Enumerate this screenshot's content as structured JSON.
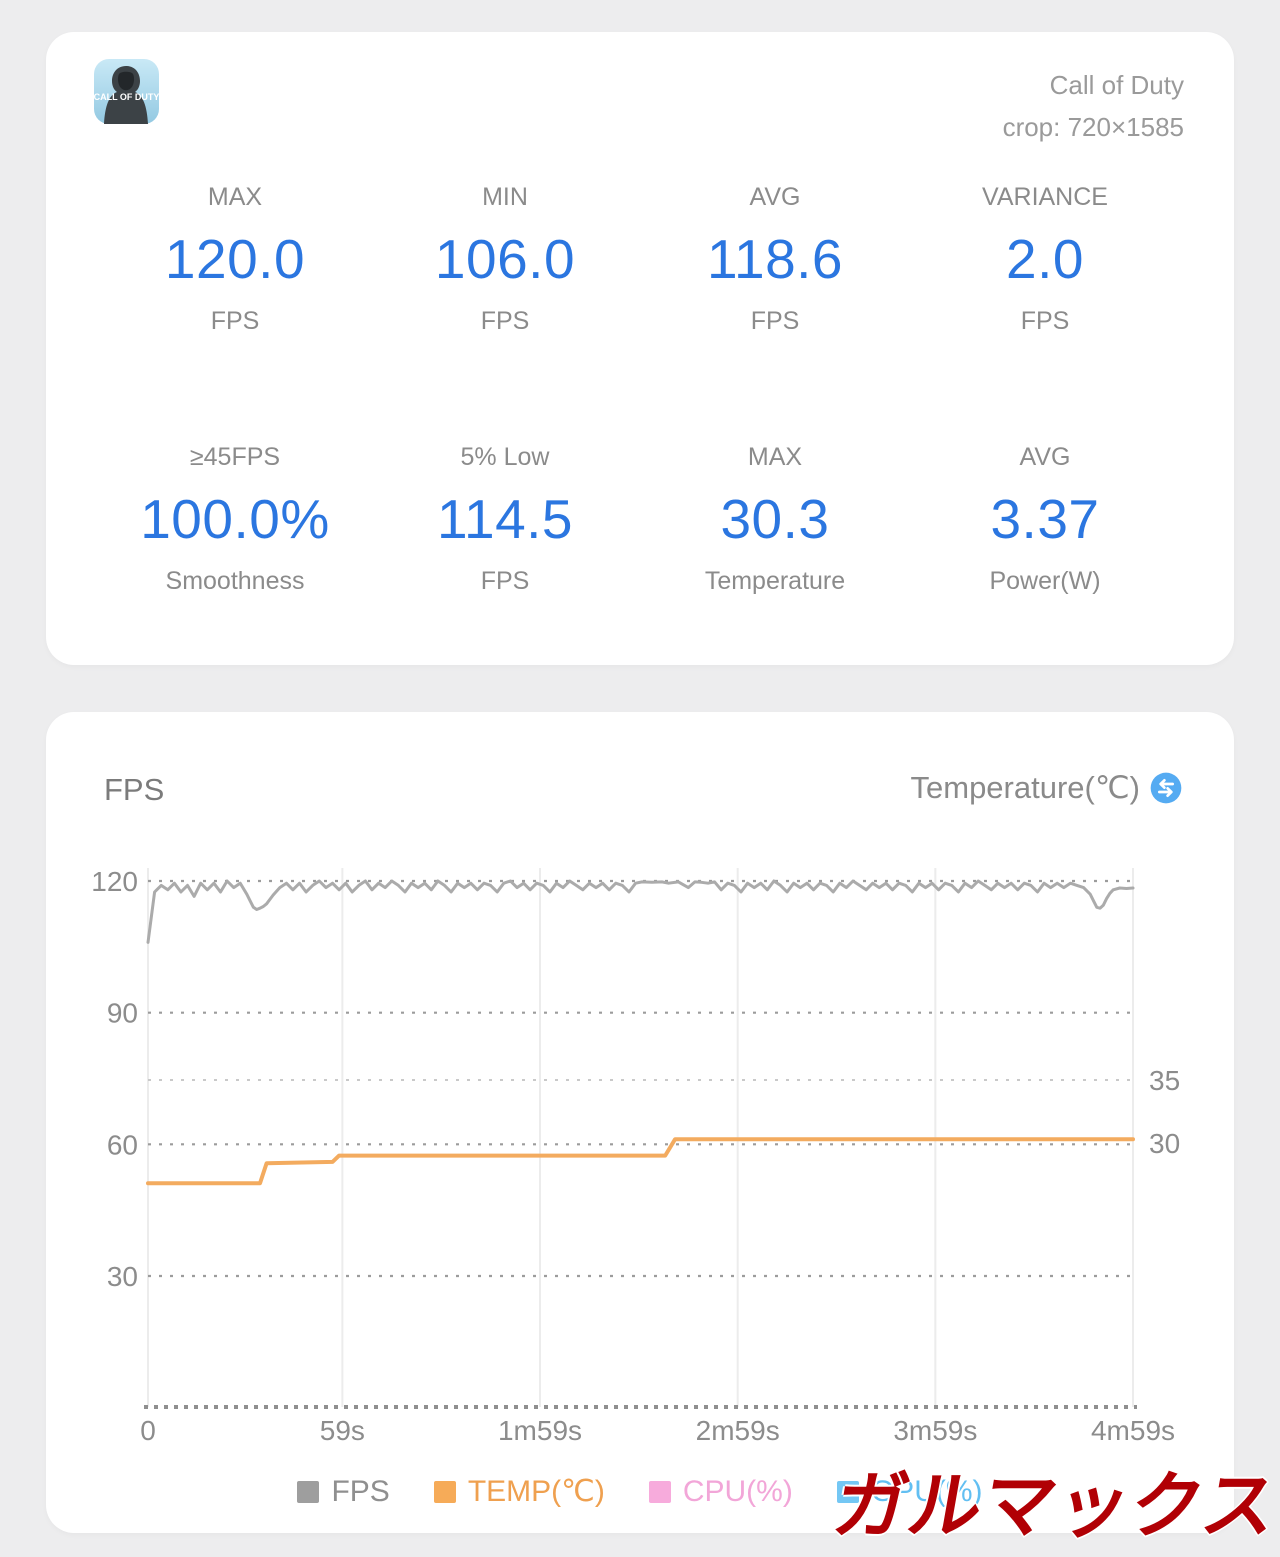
{
  "colors": {
    "page_bg": "#ededee",
    "card_bg": "#ffffff",
    "accent_value_blue": "#2b76e0",
    "label_gray": "#8b8b8b",
    "swap_icon_blue": "#55abf2",
    "watermark_red": "#b10005",
    "fps_line": "#ababab",
    "temp_line": "#f3ab5f"
  },
  "summary_card": {
    "app_name": "Call of Duty",
    "crop_line": "crop: 720×1585",
    "app_icon": {
      "name": "call-of-duty-app-icon",
      "caption": "CALL OF DUTY"
    },
    "row1": [
      {
        "label": "MAX",
        "value": "120.0",
        "unit": "FPS"
      },
      {
        "label": "MIN",
        "value": "106.0",
        "unit": "FPS"
      },
      {
        "label": "AVG",
        "value": "118.6",
        "unit": "FPS"
      },
      {
        "label": "VARIANCE",
        "value": "2.0",
        "unit": "FPS"
      }
    ],
    "row2": [
      {
        "label": "≥45FPS",
        "value": "100.0%",
        "unit": "Smoothness"
      },
      {
        "label": "5% Low",
        "value": "114.5",
        "unit": "FPS"
      },
      {
        "label": "MAX",
        "value": "30.3",
        "unit": "Temperature"
      },
      {
        "label": "AVG",
        "value": "3.37",
        "unit": "Power(W)"
      }
    ]
  },
  "watermark": "ガルマックス",
  "chart_data": {
    "type": "line",
    "left_title": "FPS",
    "right_title": "Temperature(℃)",
    "x_max_seconds": 299,
    "x_ticks": [
      {
        "t": 0,
        "label": "0"
      },
      {
        "t": 59,
        "label": "59s"
      },
      {
        "t": 119,
        "label": "1m59s"
      },
      {
        "t": 179,
        "label": "2m59s"
      },
      {
        "t": 239,
        "label": "3m59s"
      },
      {
        "t": 299,
        "label": "4m59s"
      }
    ],
    "left_axis": {
      "label": "FPS",
      "ticks": [
        120,
        90,
        60,
        30
      ],
      "range": [
        0,
        120
      ]
    },
    "right_axis": {
      "label": "Temperature(℃)",
      "ticks": [
        35,
        30
      ]
    },
    "legend": [
      {
        "label": "FPS",
        "color": "#9e9e9e",
        "text_color": "#8f8f8f"
      },
      {
        "label": "TEMP(℃)",
        "color": "#f6ab58",
        "text_color": "#efa04f"
      },
      {
        "label": "CPU(%)",
        "color": "#f7abdc",
        "text_color": "#f2a6d8"
      },
      {
        "label": "GPU(%)",
        "color": "#74c7f4",
        "text_color": "#62bff2"
      }
    ],
    "series": [
      {
        "name": "FPS",
        "axis": "left",
        "color": "#ababab",
        "width": 3,
        "points": [
          [
            0,
            106
          ],
          [
            2,
            117.5
          ],
          [
            4,
            119
          ],
          [
            6,
            118
          ],
          [
            8,
            119.5
          ],
          [
            10,
            117.5
          ],
          [
            12,
            119
          ],
          [
            14,
            116.5
          ],
          [
            16,
            119.5
          ],
          [
            18,
            118
          ],
          [
            20,
            119.5
          ],
          [
            22,
            117.5
          ],
          [
            24,
            120
          ],
          [
            26,
            118.5
          ],
          [
            28,
            119.5
          ],
          [
            30,
            117
          ],
          [
            31,
            115.5
          ],
          [
            32,
            114
          ],
          [
            33,
            113.5
          ],
          [
            34,
            113.8
          ],
          [
            35,
            114.2
          ],
          [
            36,
            114.8
          ],
          [
            37,
            115.8
          ],
          [
            38,
            116.8
          ],
          [
            40,
            118.5
          ],
          [
            42,
            119.5
          ],
          [
            44,
            118
          ],
          [
            46,
            119.5
          ],
          [
            48,
            117.5
          ],
          [
            50,
            119
          ],
          [
            52,
            120
          ],
          [
            54,
            118.5
          ],
          [
            56,
            119.5
          ],
          [
            58,
            118
          ],
          [
            60,
            119.5
          ],
          [
            62,
            117.5
          ],
          [
            64,
            119
          ],
          [
            66,
            120
          ],
          [
            68,
            118
          ],
          [
            70,
            119.5
          ],
          [
            72,
            118.5
          ],
          [
            74,
            120
          ],
          [
            76,
            119
          ],
          [
            78,
            117.5
          ],
          [
            80,
            119.5
          ],
          [
            82,
            118.5
          ],
          [
            84,
            119.5
          ],
          [
            86,
            118
          ],
          [
            88,
            120
          ],
          [
            90,
            119
          ],
          [
            92,
            117.5
          ],
          [
            94,
            119.5
          ],
          [
            96,
            118.5
          ],
          [
            98,
            119.5
          ],
          [
            100,
            118
          ],
          [
            102,
            119.5
          ],
          [
            104,
            119
          ],
          [
            106,
            117.5
          ],
          [
            108,
            119.5
          ],
          [
            110,
            120
          ],
          [
            112,
            118.5
          ],
          [
            114,
            119.5
          ],
          [
            116,
            118
          ],
          [
            118,
            119.5
          ],
          [
            120,
            119
          ],
          [
            122,
            117.5
          ],
          [
            124,
            119.5
          ],
          [
            126,
            118.5
          ],
          [
            128,
            120
          ],
          [
            130,
            119
          ],
          [
            132,
            118
          ],
          [
            134,
            119.5
          ],
          [
            136,
            118.5
          ],
          [
            138,
            119.5
          ],
          [
            140,
            118
          ],
          [
            142,
            119.5
          ],
          [
            144,
            119
          ],
          [
            146,
            117.5
          ],
          [
            148,
            119.5
          ],
          [
            150,
            119.8
          ],
          [
            153,
            119.7
          ],
          [
            156,
            119.8
          ],
          [
            158,
            119.5
          ],
          [
            161,
            119.8
          ],
          [
            164,
            118.5
          ],
          [
            166,
            119.8
          ],
          [
            168,
            119.7
          ],
          [
            170,
            119.5
          ],
          [
            172,
            119.8
          ],
          [
            174,
            118
          ],
          [
            176,
            119.5
          ],
          [
            178,
            119
          ],
          [
            180,
            117.5
          ],
          [
            182,
            119.5
          ],
          [
            184,
            118.5
          ],
          [
            186,
            119.5
          ],
          [
            188,
            118
          ],
          [
            190,
            120
          ],
          [
            192,
            119
          ],
          [
            194,
            117.5
          ],
          [
            196,
            119.5
          ],
          [
            198,
            118.5
          ],
          [
            200,
            119.5
          ],
          [
            202,
            118
          ],
          [
            204,
            119.5
          ],
          [
            206,
            119
          ],
          [
            208,
            117.5
          ],
          [
            210,
            119.5
          ],
          [
            212,
            118.5
          ],
          [
            214,
            120
          ],
          [
            216,
            119
          ],
          [
            218,
            118
          ],
          [
            220,
            119.5
          ],
          [
            222,
            118.5
          ],
          [
            224,
            119.5
          ],
          [
            226,
            118
          ],
          [
            228,
            119.5
          ],
          [
            230,
            119
          ],
          [
            232,
            117.5
          ],
          [
            234,
            119.5
          ],
          [
            236,
            118.5
          ],
          [
            238,
            119.5
          ],
          [
            240,
            118
          ],
          [
            242,
            119.5
          ],
          [
            244,
            119
          ],
          [
            246,
            117.5
          ],
          [
            248,
            119.5
          ],
          [
            250,
            118.5
          ],
          [
            252,
            120
          ],
          [
            254,
            119
          ],
          [
            256,
            118
          ],
          [
            258,
            119.5
          ],
          [
            260,
            118.5
          ],
          [
            262,
            119.5
          ],
          [
            264,
            118
          ],
          [
            266,
            119.5
          ],
          [
            268,
            119
          ],
          [
            270,
            117.5
          ],
          [
            272,
            119.5
          ],
          [
            274,
            118.5
          ],
          [
            276,
            119.5
          ],
          [
            278,
            118.5
          ],
          [
            280,
            119.5
          ],
          [
            282,
            119
          ],
          [
            284,
            118.5
          ],
          [
            286,
            117
          ],
          [
            287,
            115.5
          ],
          [
            288,
            114
          ],
          [
            289,
            113.8
          ],
          [
            290,
            114.5
          ],
          [
            291,
            116
          ],
          [
            292,
            117.2
          ],
          [
            293,
            118
          ],
          [
            295,
            118.4
          ],
          [
            297,
            118.3
          ],
          [
            299,
            118.4
          ]
        ]
      },
      {
        "name": "TEMP(℃)",
        "axis": "right",
        "color": "#f3ab5f",
        "width": 4,
        "points": [
          [
            0,
            26.8
          ],
          [
            34,
            26.8
          ],
          [
            36,
            28.4
          ],
          [
            56,
            28.5
          ],
          [
            58,
            29
          ],
          [
            157,
            29
          ],
          [
            160,
            30.3
          ],
          [
            299,
            30.3
          ]
        ]
      }
    ]
  }
}
